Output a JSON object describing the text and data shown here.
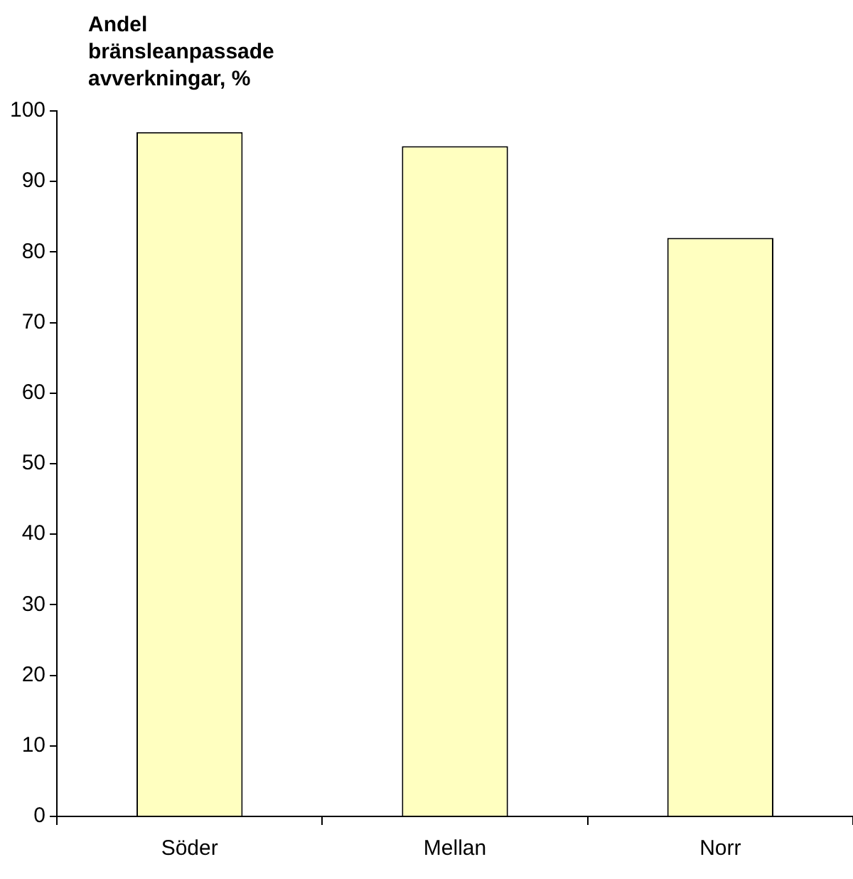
{
  "chart_data": {
    "type": "bar",
    "ylabel": "Andel bränsleanpassade avverkningar, %",
    "categories": [
      "Söder",
      "Mellan",
      "Norr"
    ],
    "values": [
      97,
      95,
      82
    ],
    "color": "#ffffc0",
    "ylim": [
      0,
      100
    ],
    "yticks": [
      0,
      10,
      20,
      30,
      40,
      50,
      60,
      70,
      80,
      90,
      100
    ],
    "grid": false,
    "legend": false
  }
}
